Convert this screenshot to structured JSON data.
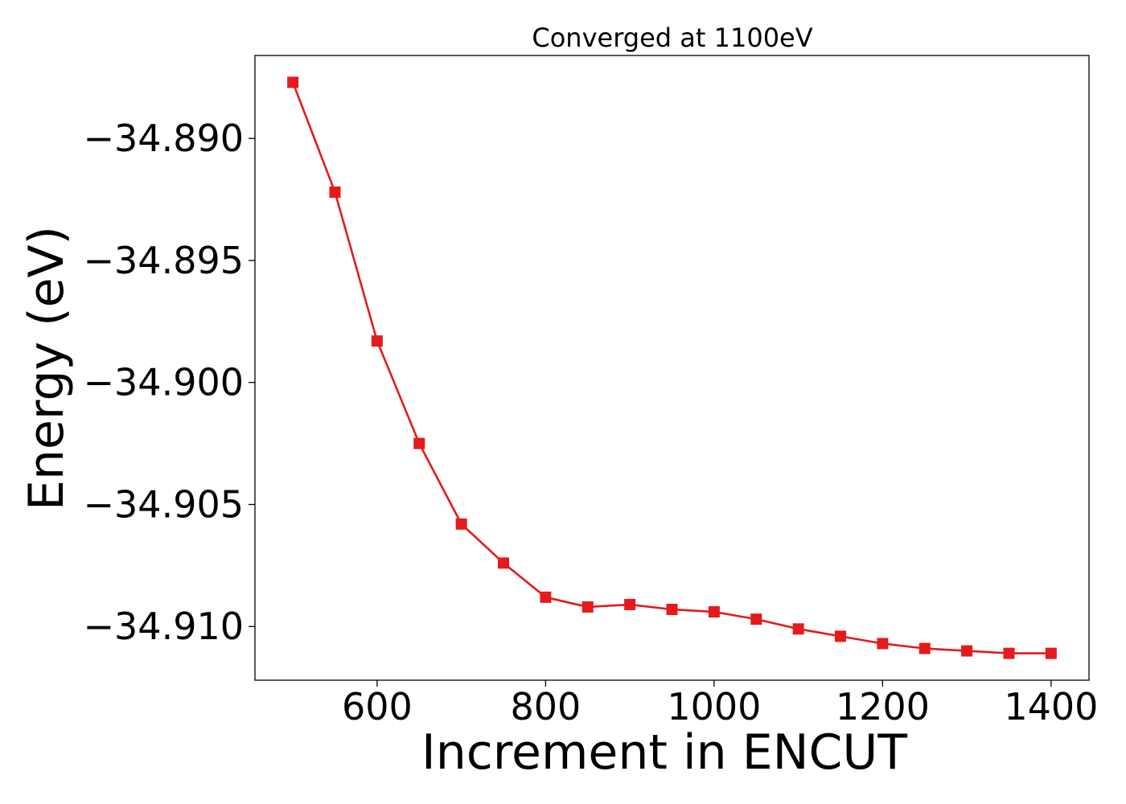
{
  "chart_data": {
    "type": "line",
    "title": "Converged at 1100eV",
    "xlabel": "Increment in ENCUT",
    "ylabel": "Energy (eV)",
    "xlim": [
      455,
      1445
    ],
    "ylim": [
      -34.9122,
      -34.8866
    ],
    "x_ticks": [
      600,
      800,
      1000,
      1200,
      1400
    ],
    "x_tick_labels": [
      "600",
      "800",
      "1000",
      "1200",
      "1400"
    ],
    "y_ticks": [
      -34.89,
      -34.895,
      -34.9,
      -34.905,
      -34.91
    ],
    "y_tick_labels": [
      "−34.890",
      "−34.895",
      "−34.900",
      "−34.905",
      "−34.910"
    ],
    "grid": false,
    "legend": "none",
    "series": [
      {
        "color": "#e41a1c",
        "marker": "square",
        "x": [
          500,
          550,
          600,
          650,
          700,
          750,
          800,
          850,
          900,
          950,
          1000,
          1050,
          1100,
          1150,
          1200,
          1250,
          1300,
          1350,
          1400
        ],
        "y": [
          -34.8877,
          -34.8922,
          -34.8983,
          -34.9025,
          -34.9058,
          -34.9074,
          -34.9088,
          -34.9092,
          -34.9091,
          -34.9093,
          -34.9094,
          -34.9097,
          -34.9101,
          -34.9104,
          -34.9107,
          -34.9109,
          -34.911,
          -34.9111,
          -34.9111
        ]
      }
    ]
  }
}
